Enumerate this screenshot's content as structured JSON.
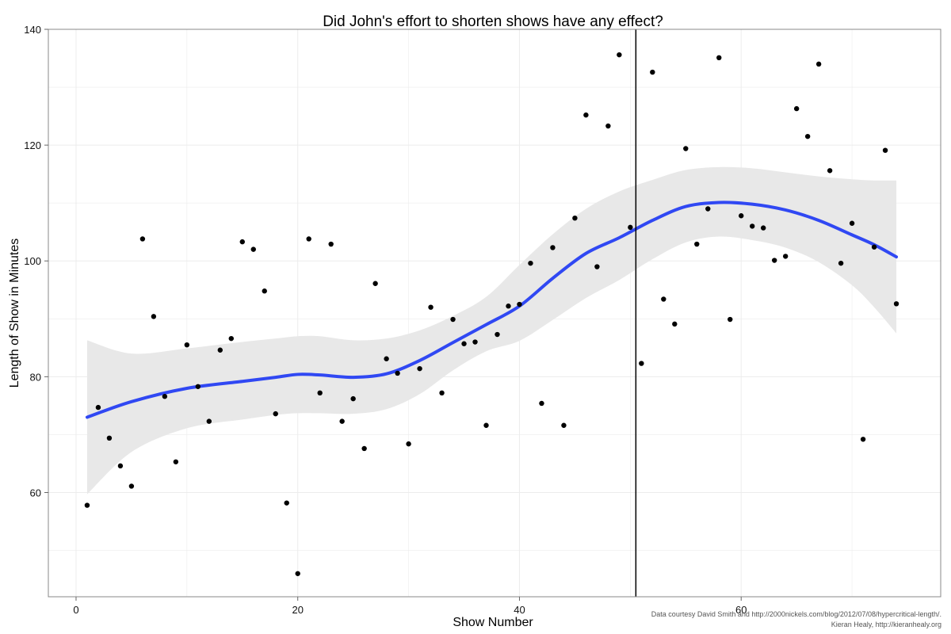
{
  "chart_data": {
    "type": "scatter",
    "title": "Did John's effort to shorten shows have any effect?",
    "xlabel": "Show Number",
    "ylabel": "Length of Show in Minutes",
    "xlim": [
      -2.5,
      78
    ],
    "ylim": [
      42,
      140
    ],
    "x_ticks": [
      0,
      20,
      40,
      60
    ],
    "y_ticks": [
      60,
      80,
      100,
      120,
      140
    ],
    "grid": true,
    "vline_x": 50.5,
    "points": [
      [
        1,
        57.8
      ],
      [
        2,
        74.7
      ],
      [
        3,
        69.4
      ],
      [
        4,
        64.6
      ],
      [
        5,
        61.1
      ],
      [
        6,
        103.8
      ],
      [
        7,
        90.4
      ],
      [
        8,
        76.6
      ],
      [
        9,
        65.3
      ],
      [
        10,
        85.5
      ],
      [
        11,
        78.3
      ],
      [
        12,
        72.3
      ],
      [
        13,
        84.6
      ],
      [
        14,
        86.6
      ],
      [
        15,
        103.3
      ],
      [
        16,
        102.0
      ],
      [
        17,
        94.8
      ],
      [
        18,
        73.6
      ],
      [
        19,
        58.2
      ],
      [
        20,
        46.0
      ],
      [
        21,
        103.8
      ],
      [
        22,
        77.2
      ],
      [
        23,
        102.9
      ],
      [
        24,
        72.3
      ],
      [
        25,
        76.2
      ],
      [
        26,
        67.6
      ],
      [
        27,
        96.1
      ],
      [
        28,
        83.1
      ],
      [
        29,
        80.6
      ],
      [
        30,
        68.4
      ],
      [
        31,
        81.4
      ],
      [
        32,
        92.0
      ],
      [
        33,
        77.2
      ],
      [
        34,
        89.9
      ],
      [
        35,
        85.7
      ],
      [
        36,
        86.0
      ],
      [
        37,
        71.6
      ],
      [
        38,
        87.3
      ],
      [
        39,
        92.2
      ],
      [
        40,
        92.5
      ],
      [
        41,
        99.6
      ],
      [
        42,
        75.4
      ],
      [
        43,
        102.3
      ],
      [
        44,
        71.6
      ],
      [
        45,
        107.4
      ],
      [
        46,
        125.2
      ],
      [
        47,
        99.0
      ],
      [
        48,
        123.3
      ],
      [
        49,
        135.6
      ],
      [
        50,
        105.8
      ],
      [
        51,
        82.3
      ],
      [
        52,
        132.6
      ],
      [
        53,
        93.4
      ],
      [
        54,
        89.1
      ],
      [
        55,
        119.4
      ],
      [
        56,
        102.9
      ],
      [
        57,
        109.0
      ],
      [
        58,
        135.1
      ],
      [
        59,
        89.9
      ],
      [
        60,
        107.8
      ],
      [
        61,
        106.0
      ],
      [
        62,
        105.7
      ],
      [
        63,
        100.1
      ],
      [
        64,
        100.8
      ],
      [
        65,
        126.3
      ],
      [
        66,
        121.5
      ],
      [
        67,
        134.0
      ],
      [
        68,
        115.6
      ],
      [
        69,
        99.6
      ],
      [
        70,
        106.5
      ],
      [
        71,
        69.2
      ],
      [
        72,
        102.4
      ],
      [
        73,
        119.1
      ],
      [
        74,
        92.6
      ]
    ],
    "smooth": {
      "x": [
        1,
        5,
        10,
        15,
        18,
        20,
        22,
        25,
        28,
        31,
        34,
        37,
        40,
        43,
        46,
        49,
        52,
        55,
        58,
        61,
        64,
        67,
        70,
        72,
        74
      ],
      "y": [
        73,
        75.7,
        78.0,
        79.2,
        79.9,
        80.4,
        80.3,
        79.9,
        80.5,
        82.8,
        85.9,
        89.0,
        92.2,
        97.0,
        101.3,
        104.0,
        107.0,
        109.4,
        110.1,
        109.8,
        108.8,
        107.0,
        104.5,
        102.8,
        100.7
      ],
      "upper": [
        86.3,
        84.0,
        84.9,
        86.0,
        86.6,
        87.0,
        87.0,
        86.3,
        86.6,
        88.0,
        90.5,
        93.8,
        99.3,
        104.6,
        109.0,
        112.0,
        114.0,
        115.7,
        116.2,
        116.0,
        115.3,
        114.6,
        114.1,
        113.9,
        113.9
      ],
      "lower": [
        59.7,
        67.0,
        71.1,
        72.6,
        73.4,
        73.7,
        73.7,
        73.6,
        74.4,
        77.0,
        81.1,
        84.4,
        86.2,
        89.8,
        93.6,
        96.7,
        100.3,
        103.2,
        104.2,
        103.6,
        102.3,
        99.8,
        95.8,
        92.0,
        87.5
      ]
    },
    "colors": {
      "smooth_line": "#3048f3",
      "ribbon": "#e8e8e8",
      "point": "#000000",
      "vline": "#000000",
      "grid": "#ececec"
    }
  },
  "credits": {
    "line1": "Data courtesy David Smith and http://2000nickels.com/blog/2012/07/08/hypercritical-length/.",
    "line2": "Kieran Healy, http://kieranhealy.org"
  }
}
